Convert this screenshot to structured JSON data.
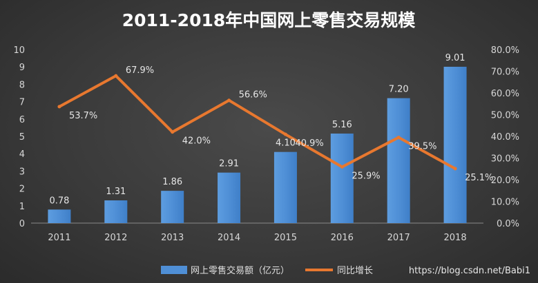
{
  "chart_data": {
    "type": "bar",
    "title": "2011-2018年中国网上零售交易规模",
    "categories": [
      "2011",
      "2012",
      "2013",
      "2014",
      "2015",
      "2016",
      "2017",
      "2018"
    ],
    "series": [
      {
        "name": "网上零售交易额（亿元）",
        "type": "bar",
        "axis": "left",
        "values": [
          0.78,
          1.31,
          1.86,
          2.91,
          4.1,
          5.16,
          7.2,
          9.01
        ],
        "labels": [
          "0.78",
          "1.31",
          "1.86",
          "2.91",
          "4.10",
          "5.16",
          "7.20",
          "9.01"
        ],
        "color": "#4f8fd6"
      },
      {
        "name": "同比增长",
        "type": "line",
        "axis": "right",
        "values": [
          53.7,
          67.9,
          42.0,
          56.6,
          40.9,
          25.9,
          39.5,
          25.1
        ],
        "labels": [
          "53.7%",
          "67.9%",
          "42.0%",
          "56.6%",
          "40.9%",
          "25.9%",
          "39.5%",
          "25.1%"
        ],
        "color": "#e8782f"
      }
    ],
    "y_left": {
      "ylim": [
        0,
        10
      ],
      "ticks": [
        0,
        1,
        2,
        3,
        4,
        5,
        6,
        7,
        8,
        9,
        10
      ],
      "tick_labels": [
        "0",
        "1",
        "2",
        "3",
        "4",
        "5",
        "6",
        "7",
        "8",
        "9",
        "10"
      ]
    },
    "y_right": {
      "ylim": [
        0,
        80
      ],
      "ticks": [
        0,
        10,
        20,
        30,
        40,
        50,
        60,
        70,
        80
      ],
      "tick_labels": [
        "0.0%",
        "10.0%",
        "20.0%",
        "30.0%",
        "40.0%",
        "50.0%",
        "60.0%",
        "70.0%",
        "80.0%"
      ]
    },
    "grid": false,
    "legend_position": "bottom"
  },
  "watermark": "https://blog.csdn.net/Babi1"
}
